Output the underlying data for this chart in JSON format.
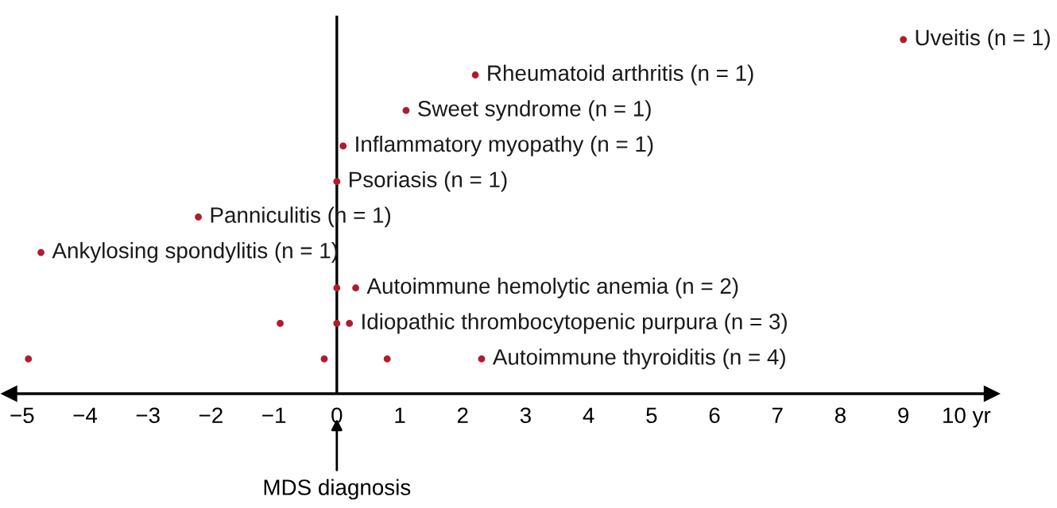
{
  "chart_data": {
    "type": "scatter",
    "orientation": "horizontal",
    "marker": "circle",
    "grid": false,
    "tick_labels": "x",
    "categories": [
      "Uveitis (n = 1)",
      "Rheumatoid arthritis (n = 1)",
      "Sweet syndrome (n = 1)",
      "Inflammatory myopathy (n = 1)",
      "Psoriasis (n = 1)",
      "Panniculitis (n = 1)",
      "Ankylosing spondylitis (n = 1)",
      "Autoimmune hemolytic anemia (n = 2)",
      "Idiopathic thrombocytopenic purpura (n = 3)",
      "Autoimmune thyroiditis (n = 4)"
    ],
    "series": [
      {
        "color": "#b01c2e",
        "values": [
          9.0,
          2.2,
          1.1,
          0.1,
          0.0,
          -2.2,
          -4.7,
          0.0,
          -0.9,
          -4.9
        ]
      },
      {
        "color": "#b01c2e",
        "values": [
          null,
          null,
          null,
          null,
          null,
          null,
          null,
          0.3,
          0.0,
          -0.2
        ]
      },
      {
        "color": "#b01c2e",
        "values": [
          null,
          null,
          null,
          null,
          null,
          null,
          null,
          null,
          0.2,
          0.8
        ]
      },
      {
        "color": "#b01c2e",
        "values": [
          null,
          null,
          null,
          null,
          null,
          null,
          null,
          null,
          null,
          2.3
        ]
      }
    ],
    "xlim": [
      -5.2,
      10.4
    ],
    "xticks": [
      {
        "value": -5,
        "label": "−5"
      },
      {
        "value": -4,
        "label": "−4"
      },
      {
        "value": -3,
        "label": "−3"
      },
      {
        "value": -2,
        "label": "−2"
      },
      {
        "value": -1,
        "label": "−1"
      },
      0,
      1,
      2,
      3,
      4,
      5,
      6,
      7,
      8,
      9,
      {
        "value": 10,
        "label": "10 yr"
      }
    ],
    "ref_lines": [
      {
        "axis": "x",
        "value": 0,
        "label": "MDS diagnosis",
        "color": "#000000"
      }
    ]
  }
}
